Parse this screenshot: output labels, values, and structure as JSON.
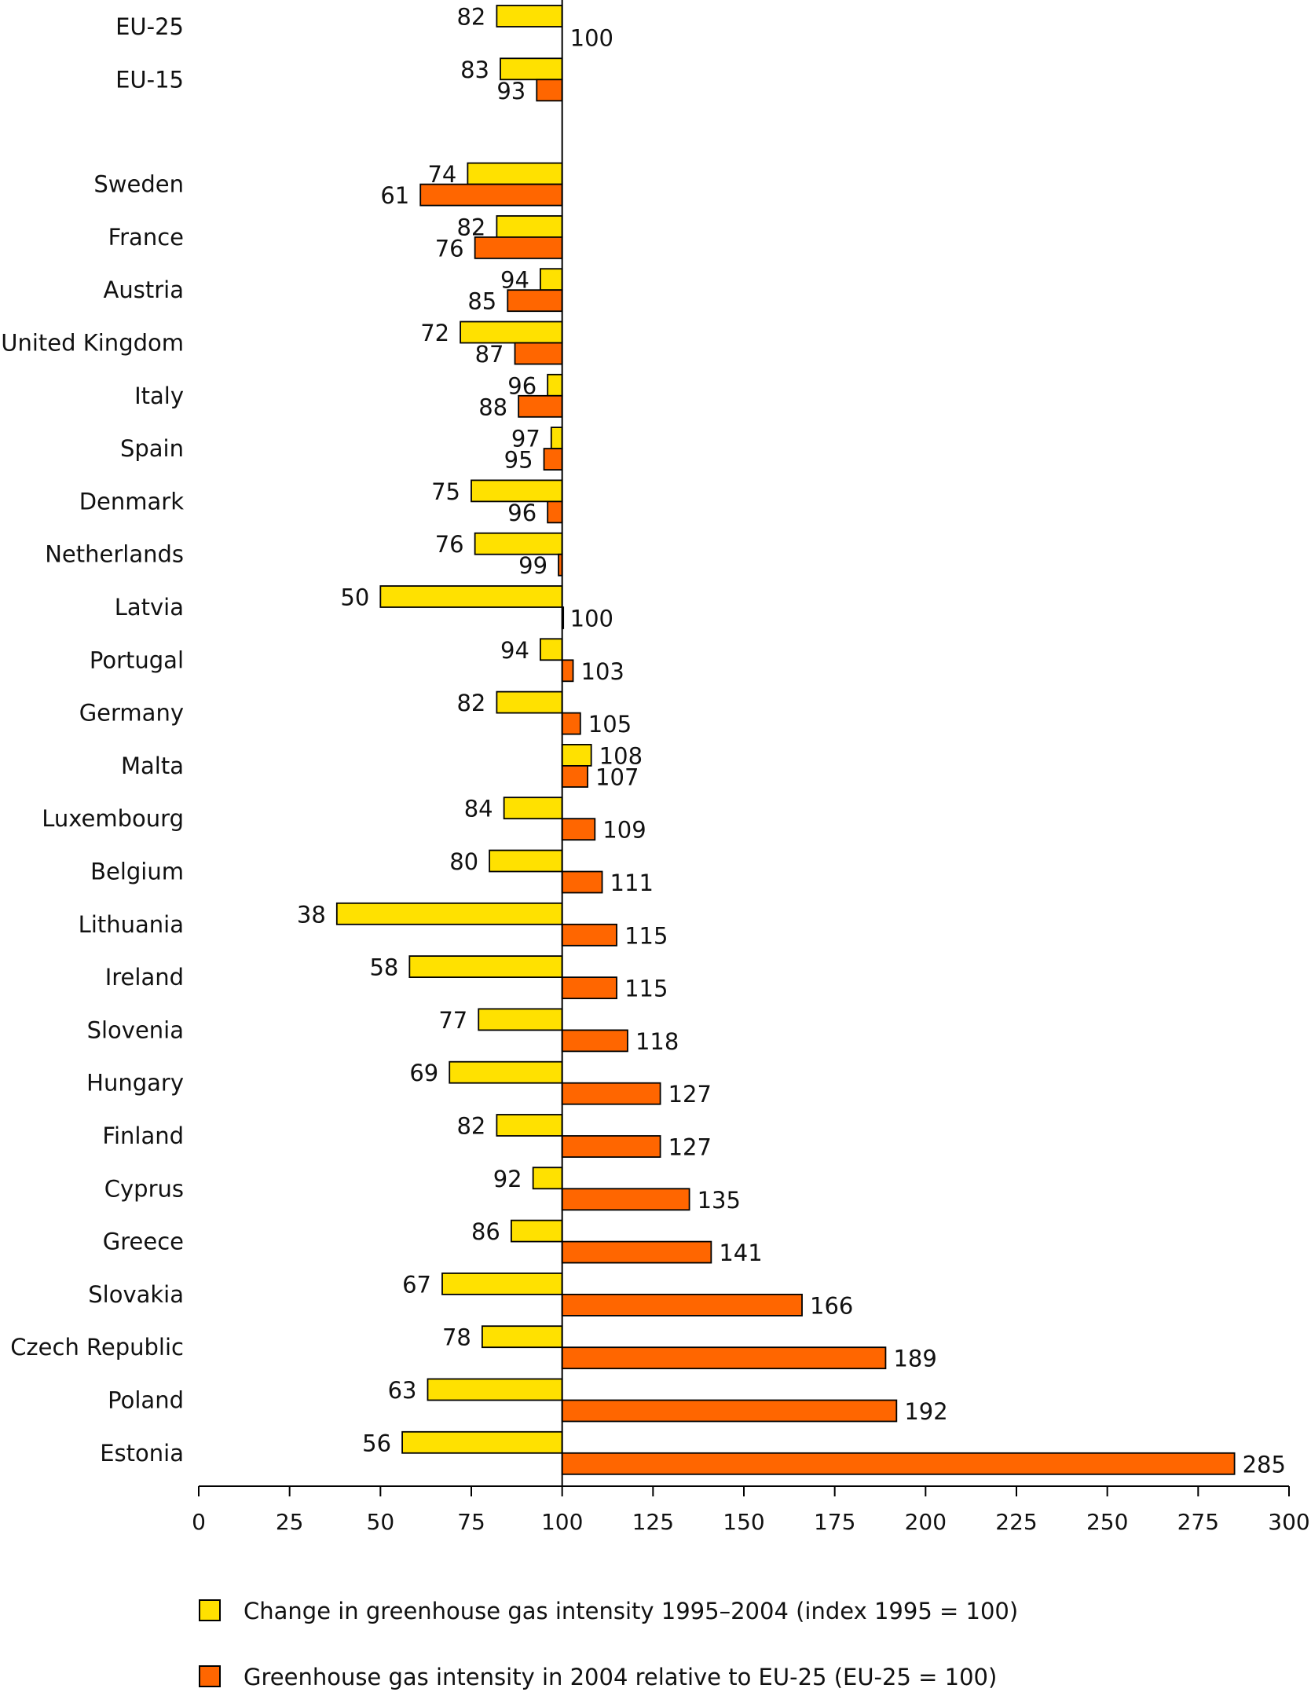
{
  "chart_data": {
    "type": "bar",
    "orientation": "horizontal",
    "xlim": [
      0,
      300
    ],
    "xticks": [
      0,
      25,
      50,
      75,
      100,
      125,
      150,
      175,
      200,
      225,
      250,
      275,
      300
    ],
    "baseline": 100,
    "grid": false,
    "legend_position": "bottom",
    "categories": [
      "EU-25",
      "EU-15",
      "Sweden",
      "France",
      "Austria",
      "United Kingdom",
      "Italy",
      "Spain",
      "Denmark",
      "Netherlands",
      "Latvia",
      "Portugal",
      "Germany",
      "Malta",
      "Luxembourg",
      "Belgium",
      "Lithuania",
      "Ireland",
      "Slovenia",
      "Hungary",
      "Finland",
      "Cyprus",
      "Greece",
      "Slovakia",
      "Czech Republic",
      "Poland",
      "Estonia"
    ],
    "series": [
      {
        "name": "Change in greenhouse gas intensity 1995–2004 (index 1995 = 100)",
        "color": "#FFE100",
        "values": [
          82,
          83,
          74,
          82,
          94,
          72,
          96,
          97,
          75,
          76,
          50,
          94,
          82,
          108,
          84,
          80,
          38,
          58,
          77,
          69,
          82,
          92,
          86,
          67,
          78,
          63,
          56
        ]
      },
      {
        "name": "Greenhouse gas intensity in 2004 relative to EU-25 (EU-25 = 100)",
        "color": "#FF6600",
        "values": [
          100,
          93,
          61,
          76,
          85,
          87,
          88,
          95,
          96,
          99,
          100,
          103,
          105,
          107,
          109,
          111,
          115,
          115,
          118,
          127,
          127,
          135,
          141,
          166,
          189,
          192,
          285
        ]
      }
    ]
  }
}
